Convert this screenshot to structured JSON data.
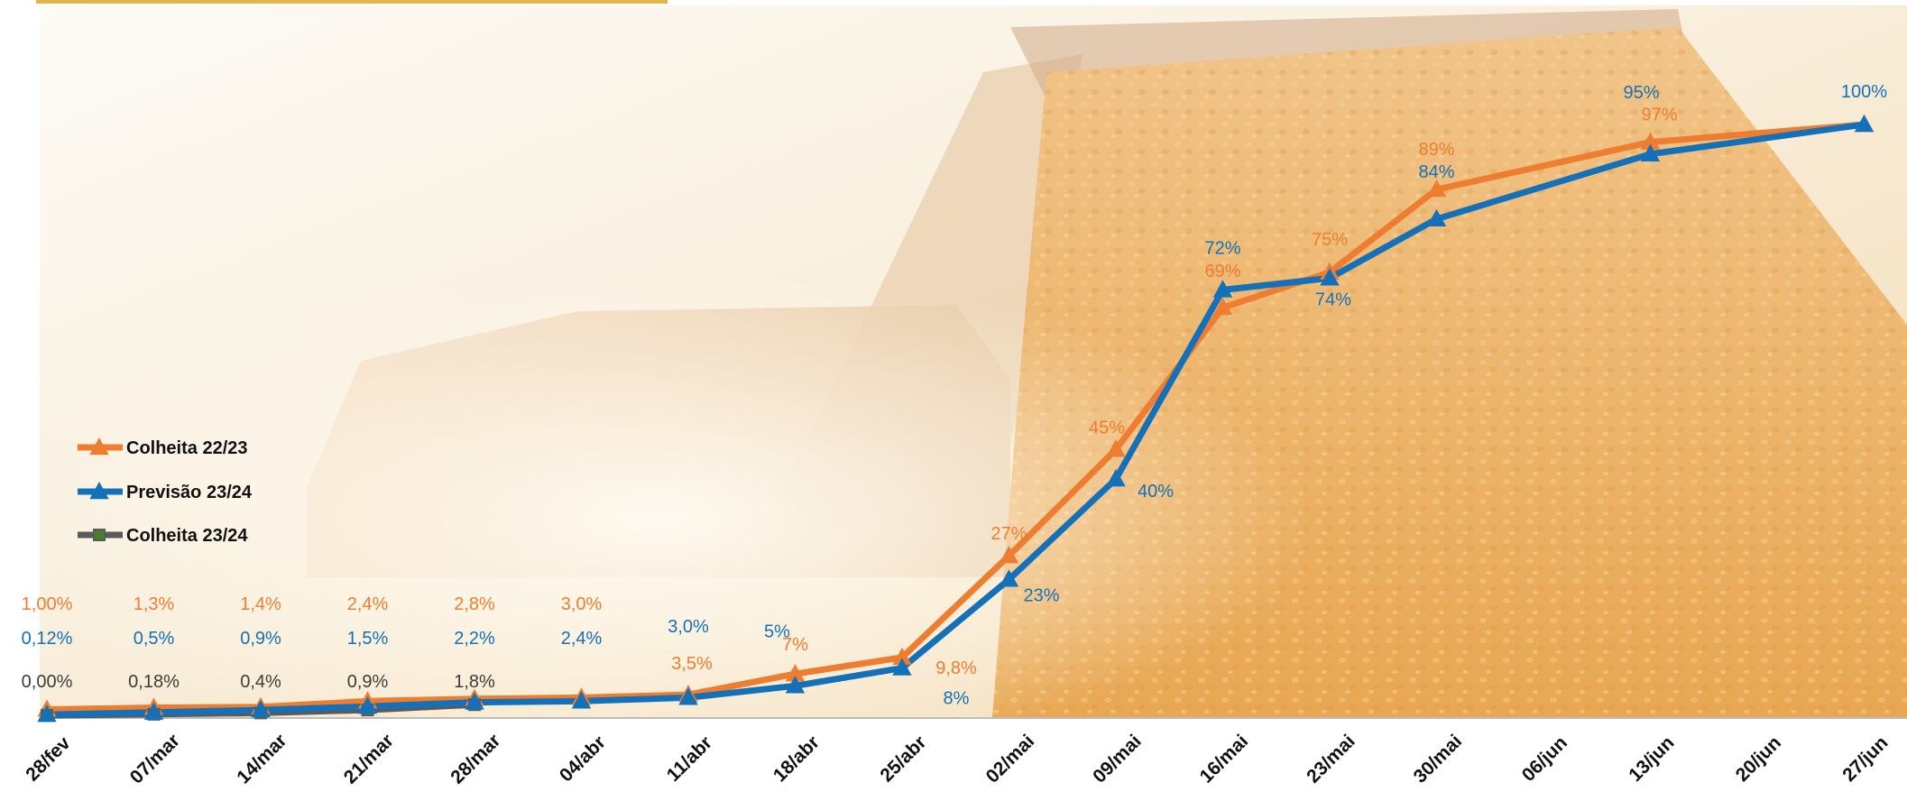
{
  "colors": {
    "colheita_22_23": "#ed7d31",
    "previsao_23_24": "#1470b8",
    "colheita_23_24": "#5a5a5a",
    "colheita_23_24_marker": "#4a7f2a",
    "title_fragment": "#d9a520",
    "background_sky": "#fbf6ee",
    "background_grain": "#eab15e"
  },
  "background": "photo of a combine harvester unloading corn grain at sunset",
  "chart_data": {
    "type": "line",
    "x": [
      "28/fev",
      "07/mar",
      "14/mar",
      "21/mar",
      "28/mar",
      "04/abr",
      "11/abr",
      "18/abr",
      "25/abr",
      "02/mai",
      "09/mai",
      "16/mai",
      "23/mai",
      "30/mai",
      "06/jun",
      "13/jun",
      "20/jun",
      "27/jun"
    ],
    "ylim": [
      0,
      100
    ],
    "grid": false,
    "legend_position": "left-middle",
    "series": [
      {
        "name": "Colheita 22/23",
        "marker": "triangle",
        "values": [
          1.0,
          1.3,
          1.4,
          2.4,
          2.8,
          3.0,
          3.5,
          7,
          9.8,
          27,
          45,
          69,
          75,
          89,
          null,
          97,
          null,
          100
        ],
        "labels": [
          "1,00%",
          "1,3%",
          "1,4%",
          "2,4%",
          "2,8%",
          "3,0%",
          "3,5%",
          "7%",
          "9,8%",
          "27%",
          "45%",
          "69%",
          "75%",
          "89%",
          "",
          "97%",
          "",
          ""
        ]
      },
      {
        "name": "Previsão 23/24",
        "marker": "triangle",
        "values": [
          0.12,
          0.5,
          0.9,
          1.5,
          2.2,
          2.4,
          3.0,
          5,
          8,
          23,
          40,
          72,
          74,
          84,
          null,
          95,
          null,
          100
        ],
        "labels": [
          "0,12%",
          "0,5%",
          "0,9%",
          "1,5%",
          "2,2%",
          "2,4%",
          "3,0%",
          "5%",
          "8%",
          "23%",
          "40%",
          "72%",
          "74%",
          "84%",
          "",
          "95%",
          "",
          "100%"
        ]
      },
      {
        "name": "Colheita 23/24",
        "marker": "square",
        "values": [
          0.0,
          0.18,
          0.4,
          0.9,
          1.8,
          null,
          null,
          null,
          null,
          null,
          null,
          null,
          null,
          null,
          null,
          null,
          null,
          null
        ],
        "labels": [
          "0,00%",
          "0,18%",
          "0,4%",
          "0,9%",
          "1,8%",
          "",
          "",
          "",
          "",
          "",
          "",
          "",
          "",
          "",
          "",
          "",
          "",
          ""
        ]
      }
    ]
  }
}
